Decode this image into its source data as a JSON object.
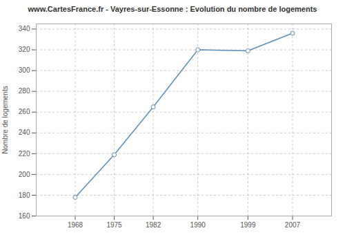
{
  "chart_data": {
    "type": "line",
    "title": "www.CartesFrance.fr - Vayres-sur-Essonne : Evolution du nombre de logements",
    "ylabel": "Nombre de logements",
    "x": [
      1968,
      1975,
      1982,
      1990,
      1999,
      2007
    ],
    "values": [
      178,
      219,
      265,
      320,
      319,
      336
    ],
    "xlim": [
      1961,
      2014
    ],
    "ylim": [
      160,
      345
    ],
    "xticks": [
      1968,
      1975,
      1982,
      1990,
      1999,
      2007
    ],
    "yticks": [
      160,
      180,
      200,
      220,
      240,
      260,
      280,
      300,
      320,
      340
    ],
    "grid": true,
    "color": "#5b8db8",
    "marker": "circle"
  }
}
